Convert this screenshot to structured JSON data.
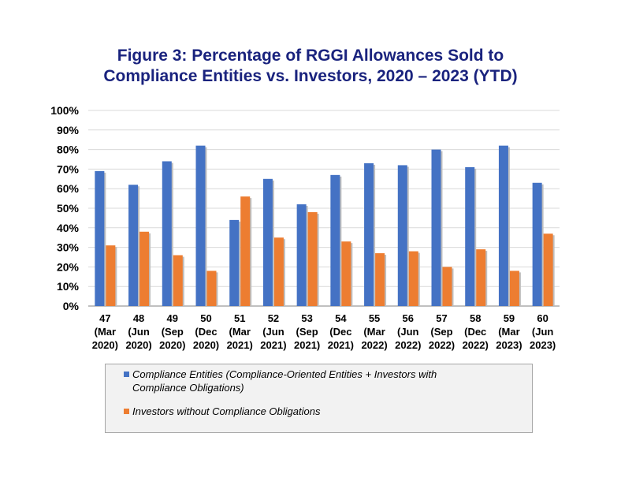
{
  "chart_data": {
    "type": "bar",
    "title_lines": [
      "Figure 3: Percentage of RGGI Allowances Sold to",
      "Compliance Entities vs. Investors, 2020 – 2023 (YTD)"
    ],
    "categories": [
      [
        "47",
        "(Mar",
        "2020)"
      ],
      [
        "48",
        "(Jun",
        "2020)"
      ],
      [
        "49",
        "(Sep",
        "2020)"
      ],
      [
        "50",
        "(Dec",
        "2020)"
      ],
      [
        "51",
        "(Mar",
        "2021)"
      ],
      [
        "52",
        "(Jun",
        "2021)"
      ],
      [
        "53",
        "(Sep",
        "2021)"
      ],
      [
        "54",
        "(Dec",
        "2021)"
      ],
      [
        "55",
        "(Mar",
        "2022)"
      ],
      [
        "56",
        "(Jun",
        "2022)"
      ],
      [
        "57",
        "(Sep",
        "2022)"
      ],
      [
        "58",
        "(Dec",
        "2022)"
      ],
      [
        "59",
        "(Mar",
        "2023)"
      ],
      [
        "60",
        "(Jun",
        "2023)"
      ]
    ],
    "series": [
      {
        "name": "Compliance Entities (Compliance-Oriented Entities + Investors with Compliance Obligations)",
        "color": "#4472c4",
        "values": [
          69,
          62,
          74,
          82,
          44,
          65,
          52,
          67,
          73,
          72,
          80,
          71,
          82,
          63
        ]
      },
      {
        "name": "Investors without Compliance Obligations",
        "color": "#ed7d31",
        "values": [
          31,
          38,
          26,
          18,
          56,
          35,
          48,
          33,
          27,
          28,
          20,
          29,
          18,
          37
        ]
      }
    ],
    "ylim": [
      0,
      100
    ],
    "yticks": [
      0,
      10,
      20,
      30,
      40,
      50,
      60,
      70,
      80,
      90,
      100
    ],
    "ytick_labels": [
      "0%",
      "10%",
      "20%",
      "30%",
      "40%",
      "50%",
      "60%",
      "70%",
      "80%",
      "90%",
      "100%"
    ],
    "grid": true,
    "legend_position": "bottom",
    "legend_lines": [
      [
        "Compliance Entities (Compliance-Oriented Entities + Investors with",
        "Compliance Obligations)"
      ],
      [
        "Investors without Compliance Obligations"
      ]
    ]
  }
}
